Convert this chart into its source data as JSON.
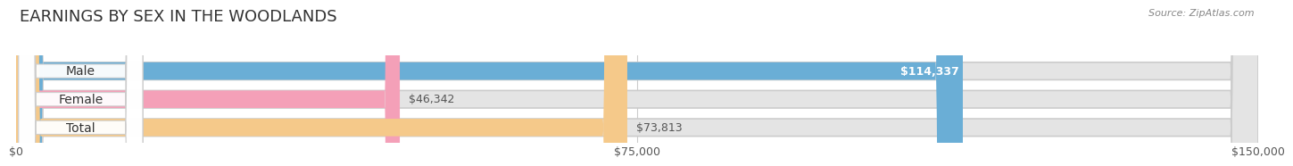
{
  "title": "EARNINGS BY SEX IN THE WOODLANDS",
  "source": "Source: ZipAtlas.com",
  "categories": [
    "Male",
    "Female",
    "Total"
  ],
  "values": [
    114337,
    46342,
    73813
  ],
  "max_value": 150000,
  "bar_colors": [
    "#6aaed6",
    "#f4a0b8",
    "#f5c98a"
  ],
  "bar_bg_color": "#e4e4e4",
  "value_labels": [
    "$114,337",
    "$46,342",
    "$73,813"
  ],
  "xtick_labels": [
    "$0",
    "$75,000",
    "$150,000"
  ],
  "xtick_values": [
    0,
    75000,
    150000
  ],
  "title_fontsize": 13,
  "tick_fontsize": 9,
  "value_fontsize": 9,
  "cat_fontsize": 10,
  "source_fontsize": 8,
  "bg_color": "#ffffff",
  "bar_height": 0.62,
  "pill_color": "#ffffff",
  "bar_border_color": "#cccccc",
  "grid_color": "#cccccc"
}
